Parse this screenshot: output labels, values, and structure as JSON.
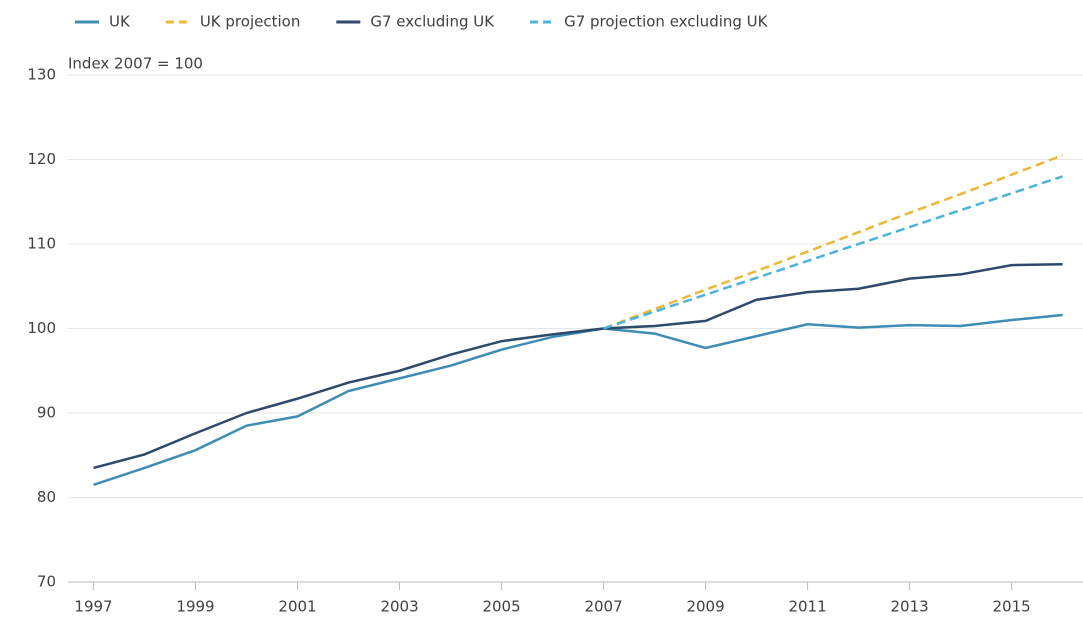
{
  "chart_data": {
    "type": "line",
    "annotation": "Index 2007 = 100",
    "x": [
      1997,
      1998,
      1999,
      2000,
      2001,
      2002,
      2003,
      2004,
      2005,
      2006,
      2007,
      2008,
      2009,
      2010,
      2011,
      2012,
      2013,
      2014,
      2015,
      2016
    ],
    "series": [
      {
        "name": "UK",
        "color": "#3f8cb4",
        "style": "solid",
        "values": [
          81.5,
          83.5,
          85.6,
          88.5,
          89.6,
          92.6,
          94.1,
          95.6,
          97.5,
          99.0,
          100,
          99.4,
          97.7,
          99.1,
          100.5,
          100.1,
          100.4,
          100.3,
          101.0,
          101.6
        ]
      },
      {
        "name": "UK projection",
        "color": "#e9b93a",
        "style": "dashed",
        "values": [
          null,
          null,
          null,
          null,
          null,
          null,
          null,
          null,
          null,
          null,
          100,
          102.3,
          104.6,
          106.8,
          109.1,
          111.4,
          113.7,
          115.9,
          118.2,
          120.5
        ]
      },
      {
        "name": "G7 excluding UK",
        "color": "#2e4a6b",
        "style": "solid",
        "values": [
          83.5,
          85.1,
          87.6,
          90.0,
          91.7,
          93.6,
          95.0,
          96.9,
          98.5,
          99.3,
          100,
          100.3,
          100.9,
          103.4,
          104.3,
          104.7,
          105.9,
          106.4,
          107.5,
          107.6
        ]
      },
      {
        "name": "G7 projection excluding UK",
        "color": "#4db3da",
        "style": "dashed",
        "values": [
          null,
          null,
          null,
          null,
          null,
          null,
          null,
          null,
          null,
          null,
          100,
          102,
          104,
          106,
          108,
          110,
          112,
          114,
          116,
          118
        ]
      }
    ],
    "xlim": [
      1996.5,
      2016.4
    ],
    "xticks": [
      1997,
      1999,
      2001,
      2003,
      2005,
      2007,
      2009,
      2011,
      2013,
      2015
    ],
    "ylim": [
      70,
      130
    ],
    "yticks": [
      70,
      80,
      90,
      100,
      110,
      120,
      130
    ],
    "grid": true
  }
}
